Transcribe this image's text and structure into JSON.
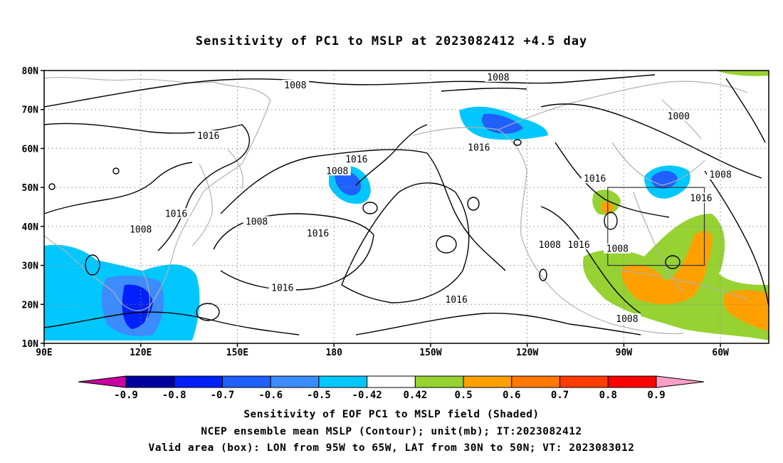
{
  "title": "Sensitivity of PC1 to MSLP at 2023082412 +4.5 day",
  "map": {
    "lat_labels": [
      "80N",
      "70N",
      "60N",
      "50N",
      "40N",
      "30N",
      "20N",
      "10N"
    ],
    "lon_labels": [
      "90E",
      "120E",
      "150E",
      "180",
      "150W",
      "120W",
      "90W",
      "60W"
    ],
    "lon_range": [
      90,
      315
    ],
    "lat_range": [
      10,
      80
    ],
    "gridlines": "dotted",
    "valid_box": {
      "lon": [
        -95,
        -65
      ],
      "lat": [
        30,
        50
      ]
    },
    "contour_labels": [
      {
        "text": "1008",
        "lon": 168,
        "lat": 76
      },
      {
        "text": "1008",
        "lon": 231,
        "lat": 78
      },
      {
        "text": "1000",
        "lon": 287,
        "lat": 68
      },
      {
        "text": "1016",
        "lon": 141,
        "lat": 63
      },
      {
        "text": "1016",
        "lon": 187,
        "lat": 57
      },
      {
        "text": "1016",
        "lon": 225,
        "lat": 60
      },
      {
        "text": "1008",
        "lon": 181,
        "lat": 54
      },
      {
        "text": "1016",
        "lon": 131,
        "lat": 43
      },
      {
        "text": "1008",
        "lon": 156,
        "lat": 41
      },
      {
        "text": "1016",
        "lon": 175,
        "lat": 38
      },
      {
        "text": "1008",
        "lon": 120,
        "lat": 39
      },
      {
        "text": "1016",
        "lon": 261,
        "lat": 52
      },
      {
        "text": "1008",
        "lon": 300,
        "lat": 53
      },
      {
        "text": "1016",
        "lon": 294,
        "lat": 47
      },
      {
        "text": "1008",
        "lon": 247,
        "lat": 35
      },
      {
        "text": "1016",
        "lon": 256,
        "lat": 35
      },
      {
        "text": "1008",
        "lon": 268,
        "lat": 34
      },
      {
        "text": "1016",
        "lon": 164,
        "lat": 24
      },
      {
        "text": "1016",
        "lon": 218,
        "lat": 21
      },
      {
        "text": "1008",
        "lon": 271,
        "lat": 16
      }
    ]
  },
  "colorbar": {
    "labels": [
      "-0.9",
      "-0.8",
      "-0.7",
      "-0.6",
      "-0.5",
      "-0.42",
      "0.42",
      "0.5",
      "0.6",
      "0.7",
      "0.8",
      "0.9"
    ],
    "colors": [
      "#0000a0",
      "#0020ff",
      "#2060ff",
      "#3c8cff",
      "#00c8ff",
      "#ffffff",
      "#96d232",
      "#ffa000",
      "#ff7800",
      "#ff3c00",
      "#ff0000"
    ],
    "low_extend_color": "#c800a0",
    "high_extend_color": "#ff9ec8"
  },
  "footer": [
    "Sensitivity of EOF PC1 to MSLP field (Shaded)",
    "NCEP ensemble mean MSLP (Contour); unit(mb); IT:2023082412",
    "Valid area (box): LON from 95W to 65W, LAT from 30N to 50N; VT: 2023083012"
  ]
}
